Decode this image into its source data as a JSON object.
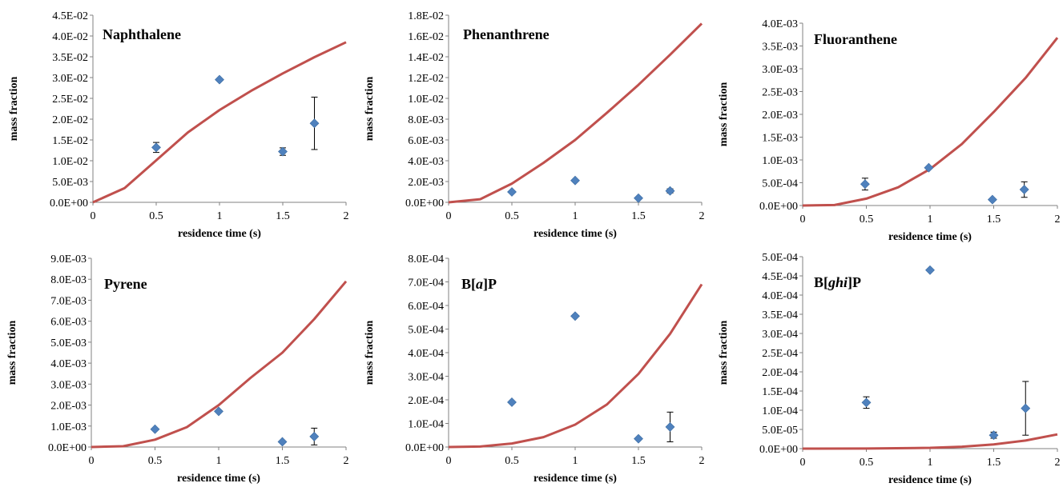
{
  "colors": {
    "model_line": "#C0504D",
    "marker": "#4F81BD",
    "axis": "#808080",
    "error_bar": "#000000"
  },
  "chart_data": [
    {
      "type": "scatter",
      "title": "Naphthalene",
      "title_parts": [
        {
          "text": "Naphthalene",
          "italic": false
        }
      ],
      "xlabel": "residence time (s)",
      "ylabel": "mass fraction",
      "xlim": [
        0,
        2
      ],
      "ylim": [
        0,
        0.045
      ],
      "xticks": [
        "0",
        "0.5",
        "1",
        "1.5",
        "2"
      ],
      "yticks": [
        "0.0E+00",
        "5.0E-03",
        "1.0E-02",
        "1.5E-02",
        "2.0E-02",
        "2.5E-02",
        "3.0E-02",
        "3.5E-02",
        "4.0E-02",
        "4.5E-02"
      ],
      "points": [
        {
          "x": 0.5,
          "y": 0.0132,
          "err": 0.0012
        },
        {
          "x": 1.0,
          "y": 0.0295,
          "err": 0
        },
        {
          "x": 1.5,
          "y": 0.0122,
          "err": 0.0009
        },
        {
          "x": 1.75,
          "y": 0.019,
          "err": 0.0063
        }
      ],
      "model": [
        [
          0,
          0
        ],
        [
          0.25,
          0.0034
        ],
        [
          0.5,
          0.0101
        ],
        [
          0.75,
          0.0168
        ],
        [
          1.0,
          0.0222
        ],
        [
          1.25,
          0.0268
        ],
        [
          1.5,
          0.031
        ],
        [
          1.75,
          0.0349
        ],
        [
          2.0,
          0.0385
        ]
      ]
    },
    {
      "type": "scatter",
      "title": "Phenanthrene",
      "title_parts": [
        {
          "text": "Phenanthrene",
          "italic": false
        }
      ],
      "xlabel": "residence time (s)",
      "ylabel": "mass fraction",
      "xlim": [
        0,
        2
      ],
      "ylim": [
        0,
        0.018
      ],
      "xticks": [
        "0",
        "0.5",
        "1",
        "1.5",
        "2"
      ],
      "yticks": [
        "0.0E+00",
        "2.0E-03",
        "4.0E-03",
        "6.0E-03",
        "8.0E-03",
        "1.0E-02",
        "1.2E-02",
        "1.4E-02",
        "1.6E-02",
        "1.8E-02"
      ],
      "points": [
        {
          "x": 0.5,
          "y": 0.001,
          "err": 0
        },
        {
          "x": 1.0,
          "y": 0.0021,
          "err": 0
        },
        {
          "x": 1.5,
          "y": 0.0004,
          "err": 0
        },
        {
          "x": 1.75,
          "y": 0.0011,
          "err": 0.0002
        }
      ],
      "model": [
        [
          0,
          0
        ],
        [
          0.25,
          0.0003
        ],
        [
          0.5,
          0.0018
        ],
        [
          0.75,
          0.0038
        ],
        [
          1.0,
          0.006
        ],
        [
          1.25,
          0.0086
        ],
        [
          1.5,
          0.0113
        ],
        [
          1.75,
          0.0142
        ],
        [
          2.0,
          0.0172
        ]
      ]
    },
    {
      "type": "scatter",
      "title": "Fluoranthene",
      "title_parts": [
        {
          "text": "Fluoranthene",
          "italic": false
        }
      ],
      "xlabel": "residence time (s)",
      "ylabel": "mass fraction",
      "xlim": [
        0,
        2
      ],
      "ylim": [
        0,
        0.004
      ],
      "xticks": [
        "0",
        "0.5",
        "1",
        "1.5",
        "2"
      ],
      "yticks": [
        "0.0E+00",
        "5.0E-04",
        "1.0E-03",
        "1.5E-03",
        "2.0E-03",
        "2.5E-03",
        "3.0E-03",
        "3.5E-03",
        "4.0E-03"
      ],
      "points": [
        {
          "x": 0.49,
          "y": 0.00047,
          "err": 0.00013
        },
        {
          "x": 0.99,
          "y": 0.00083,
          "err": 0
        },
        {
          "x": 1.49,
          "y": 0.00013,
          "err": 0
        },
        {
          "x": 1.74,
          "y": 0.00035,
          "err": 0.00017
        }
      ],
      "model": [
        [
          0,
          0
        ],
        [
          0.25,
          1e-05
        ],
        [
          0.5,
          0.00015
        ],
        [
          0.75,
          0.0004
        ],
        [
          1.0,
          0.0008
        ],
        [
          1.25,
          0.00135
        ],
        [
          1.5,
          0.00205
        ],
        [
          1.75,
          0.0028
        ],
        [
          2.0,
          0.00368
        ]
      ]
    },
    {
      "type": "scatter",
      "title": "Pyrene",
      "title_parts": [
        {
          "text": "Pyrene",
          "italic": false
        }
      ],
      "xlabel": "residence time (s)",
      "ylabel": "mass fraction",
      "xlim": [
        0,
        2
      ],
      "ylim": [
        0,
        0.009
      ],
      "xticks": [
        "0",
        "0.5",
        "1",
        "1.5",
        "2"
      ],
      "yticks": [
        "0.0E+00",
        "1.0E-03",
        "2.0E-03",
        "3.0E-03",
        "4.0E-03",
        "5.0E-03",
        "6.0E-03",
        "7.0E-03",
        "8.0E-03",
        "9.0E-03"
      ],
      "points": [
        {
          "x": 0.5,
          "y": 0.00085,
          "err": 0
        },
        {
          "x": 1.0,
          "y": 0.0017,
          "err": 0
        },
        {
          "x": 1.5,
          "y": 0.00025,
          "err": 0
        },
        {
          "x": 1.75,
          "y": 0.0005,
          "err": 0.0004
        }
      ],
      "model": [
        [
          0,
          0
        ],
        [
          0.25,
          4e-05
        ],
        [
          0.5,
          0.00035
        ],
        [
          0.75,
          0.00095
        ],
        [
          1.0,
          0.002
        ],
        [
          1.25,
          0.0033
        ],
        [
          1.5,
          0.0045
        ],
        [
          1.75,
          0.0061
        ],
        [
          2.0,
          0.0079
        ]
      ]
    },
    {
      "type": "scatter",
      "title": "B[a]P",
      "title_parts": [
        {
          "text": "B[",
          "italic": false
        },
        {
          "text": "a",
          "italic": true
        },
        {
          "text": "]P",
          "italic": false
        }
      ],
      "xlabel": "residence time (s)",
      "ylabel": "mass fraction",
      "xlim": [
        0,
        2
      ],
      "ylim": [
        0,
        0.0008
      ],
      "xticks": [
        "0",
        "0.5",
        "1",
        "1.5",
        "2"
      ],
      "yticks": [
        "0.0E+00",
        "1.0E-04",
        "2.0E-04",
        "3.0E-04",
        "4.0E-04",
        "5.0E-04",
        "6.0E-04",
        "7.0E-04",
        "8.0E-04"
      ],
      "points": [
        {
          "x": 0.5,
          "y": 0.00019,
          "err": 0
        },
        {
          "x": 1.0,
          "y": 0.000555,
          "err": 0
        },
        {
          "x": 1.5,
          "y": 3.5e-05,
          "err": 0
        },
        {
          "x": 1.75,
          "y": 8.5e-05,
          "err": 6.3e-05
        }
      ],
      "model": [
        [
          0,
          0
        ],
        [
          0.25,
          2e-06
        ],
        [
          0.5,
          1.5e-05
        ],
        [
          0.75,
          4.2e-05
        ],
        [
          1.0,
          9.5e-05
        ],
        [
          1.25,
          0.00018
        ],
        [
          1.5,
          0.00031
        ],
        [
          1.75,
          0.00048
        ],
        [
          2.0,
          0.00069
        ]
      ]
    },
    {
      "type": "scatter",
      "title": "B[ghi]P",
      "title_parts": [
        {
          "text": "B[",
          "italic": false
        },
        {
          "text": "ghi",
          "italic": true
        },
        {
          "text": "]P",
          "italic": false
        }
      ],
      "xlabel": "residence time (s)",
      "ylabel": "mass fraction",
      "xlim": [
        0,
        2
      ],
      "ylim": [
        0,
        0.0005
      ],
      "xticks": [
        "0",
        "0.5",
        "1",
        "1.5",
        "2"
      ],
      "yticks": [
        "0.0E+00",
        "5.0E-05",
        "1.0E-04",
        "1.5E-04",
        "2.0E-04",
        "2.5E-04",
        "3.0E-04",
        "3.5E-04",
        "4.0E-04",
        "4.5E-04",
        "5.0E-04"
      ],
      "points": [
        {
          "x": 0.5,
          "y": 0.00012,
          "err": 1.5e-05
        },
        {
          "x": 1.0,
          "y": 0.000465,
          "err": 0
        },
        {
          "x": 1.5,
          "y": 3.5e-05,
          "err": 8e-06
        },
        {
          "x": 1.75,
          "y": 0.000105,
          "err": 7e-05
        }
      ],
      "model": [
        [
          0,
          0
        ],
        [
          0.5,
          2e-07
        ],
        [
          1.0,
          2e-06
        ],
        [
          1.25,
          5e-06
        ],
        [
          1.5,
          1.1e-05
        ],
        [
          1.75,
          2.1e-05
        ],
        [
          2.0,
          3.7e-05
        ]
      ]
    }
  ]
}
